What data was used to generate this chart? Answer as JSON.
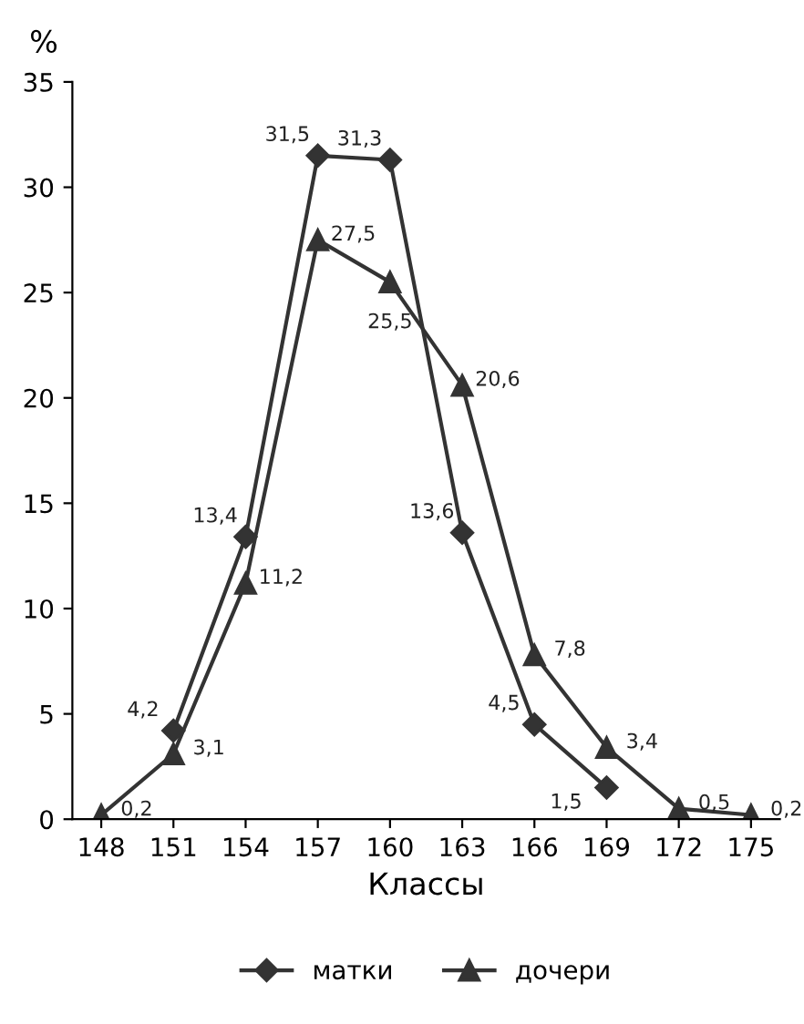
{
  "chart_data": {
    "type": "line",
    "xlabel": "Классы",
    "ylabel": "%",
    "categories": [
      "148",
      "151",
      "154",
      "157",
      "160",
      "163",
      "166",
      "169",
      "172",
      "175"
    ],
    "series": [
      {
        "name": "матки",
        "color": "#333333",
        "marker": "diamond",
        "values": [
          null,
          4.2,
          13.4,
          31.5,
          31.3,
          13.6,
          4.5,
          1.5,
          null,
          null
        ],
        "value_labels": [
          null,
          "4,2",
          "13,4",
          "31,5",
          "31,3",
          "13,6",
          "4,5",
          "1,5",
          null,
          null
        ]
      },
      {
        "name": "дочери",
        "color": "#333333",
        "marker": "triangle",
        "values": [
          0.2,
          3.1,
          11.2,
          27.5,
          25.5,
          20.6,
          7.8,
          3.4,
          0.5,
          0.2
        ],
        "value_labels": [
          "0,2",
          "3,1",
          "11,2",
          "27,5",
          "25,5",
          "20,6",
          "7,8",
          "3,4",
          "0,5",
          "0,2"
        ]
      }
    ],
    "ylim": [
      0,
      35
    ],
    "yticks": [
      0,
      5,
      10,
      15,
      20,
      25,
      30,
      35
    ],
    "legend": "bottom",
    "grid": false
  }
}
